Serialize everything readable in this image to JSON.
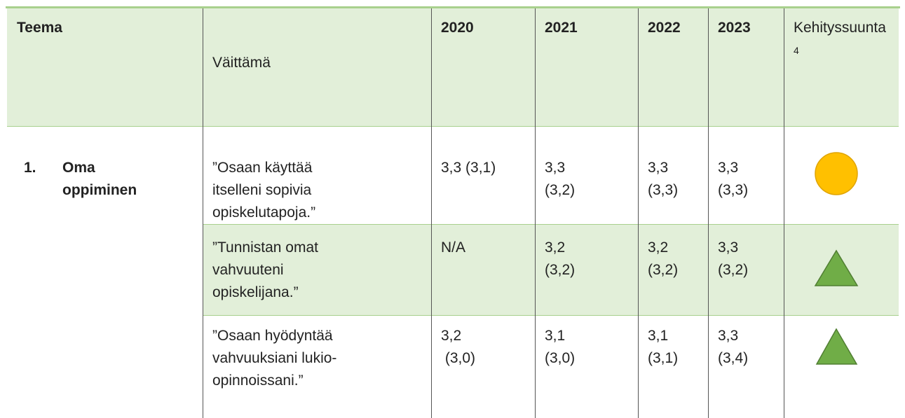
{
  "table": {
    "header": {
      "theme": "Teema",
      "statement": "Väittämä",
      "years": [
        "2020",
        "2021",
        "2022",
        "2023"
      ],
      "trend": "Kehityssuunta",
      "trend_note": "4"
    },
    "theme": {
      "number": "1.",
      "title": [
        "Oma",
        "oppiminen"
      ]
    },
    "rows": [
      {
        "statement": [
          "”Osaan käyttää",
          "itselleni sopivia",
          "opiskelutapoja.”"
        ],
        "values": [
          [
            "3,3 (3,1)"
          ],
          [
            "3,3",
            "(3,2)"
          ],
          [
            "3,3",
            "(3,3)"
          ],
          [
            "3,3",
            "(3,3)"
          ]
        ]
      },
      {
        "statement": [
          "”Tunnistan omat",
          "vahvuuteni",
          "opiskelijana.”"
        ],
        "values": [
          [
            "N/A"
          ],
          [
            "3,2",
            "(3,2)"
          ],
          [
            "3,2",
            "(3,2)"
          ],
          [
            "3,3",
            "(3,2)"
          ]
        ]
      },
      {
        "statement": [
          "”Osaan hyödyntää",
          "vahvuuksiani lukio-",
          "opinnoissani.”"
        ],
        "values": [
          [
            "3,2",
            " (3,0)"
          ],
          [
            "3,1",
            "(3,0)"
          ],
          [
            "3,1",
            "(3,1)"
          ],
          [
            "3,3",
            "(3,4)"
          ]
        ]
      }
    ]
  }
}
